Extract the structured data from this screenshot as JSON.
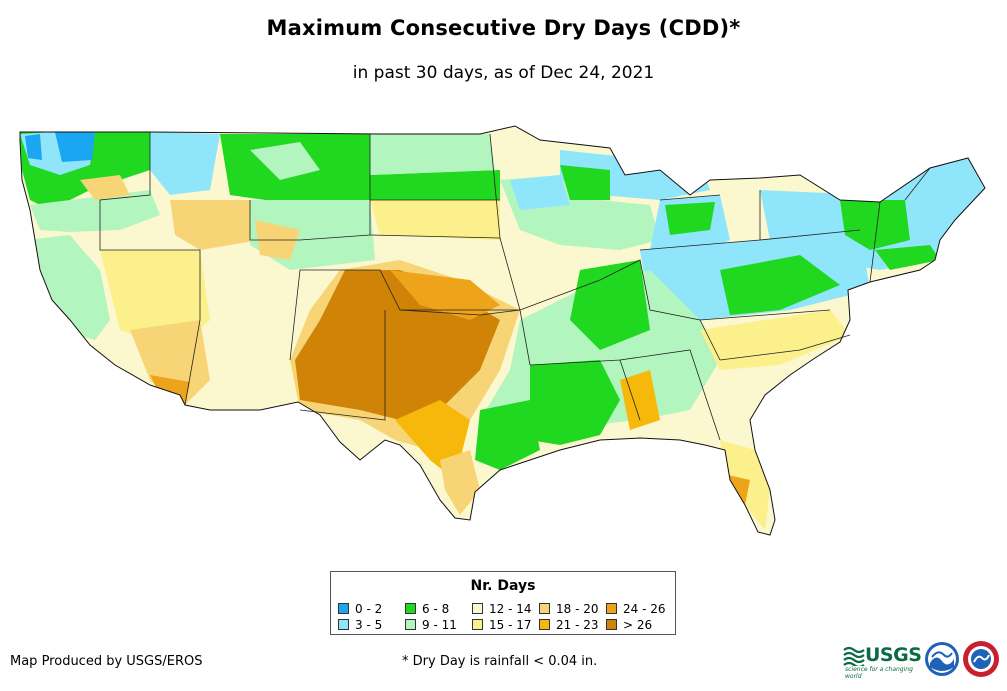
{
  "header": {
    "title": "Maximum Consecutive Dry Days (CDD)*",
    "subtitle": "in past 30 days, as of Dec 24, 2021"
  },
  "legend": {
    "title": "Nr. Days",
    "items": [
      {
        "label": "0 - 2",
        "color": "#1aa6f0"
      },
      {
        "label": "3 - 5",
        "color": "#8fe6fb"
      },
      {
        "label": "6 - 8",
        "color": "#1fd81f"
      },
      {
        "label": "9 - 11",
        "color": "#b3f5bf"
      },
      {
        "label": "12 - 14",
        "color": "#fbf8cf"
      },
      {
        "label": "15 - 17",
        "color": "#fbf08c"
      },
      {
        "label": "18 - 20",
        "color": "#f7d577"
      },
      {
        "label": "21 - 23",
        "color": "#f6b80b"
      },
      {
        "label": "24 - 26",
        "color": "#eda31a"
      },
      {
        "label": "> 26",
        "color": "#cf8408"
      }
    ]
  },
  "footer": {
    "credit": "Map Produced by USGS/EROS",
    "note": "* Dry Day is rainfall < 0.04 in."
  },
  "logos": {
    "usgs_text": "USGS",
    "usgs_tagline": "science for a changing world",
    "icons": [
      "usgs-logo-icon",
      "noaa-logo-icon",
      "nws-logo-icon"
    ]
  }
}
